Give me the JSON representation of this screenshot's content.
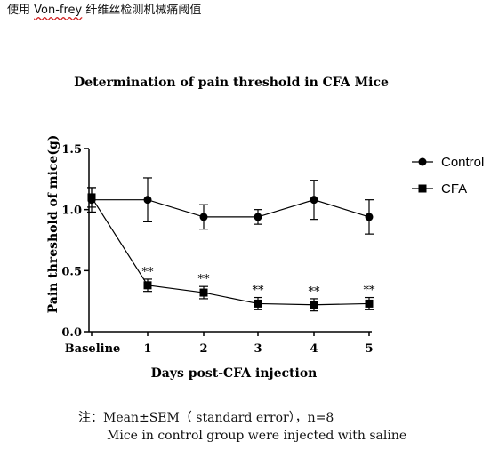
{
  "doc": {
    "heading_prefix": "使用 ",
    "heading_term": "Von-frey",
    "heading_suffix": " 纤维丝检测机械痛阈值"
  },
  "chart_data": {
    "type": "line",
    "title": "Determination of pain threshold in CFA Mice",
    "xlabel": "Days post-CFA injection",
    "ylabel": "Pain threshold of mice(g)",
    "categories": [
      "Baseline",
      "1",
      "2",
      "3",
      "4",
      "5"
    ],
    "yticks": [
      "0.0",
      "0.5",
      "1.0",
      "1.5"
    ],
    "ylim": [
      0,
      1.5
    ],
    "grid": false,
    "legend_position": "right",
    "series": [
      {
        "name": "Control",
        "marker": "circle",
        "values": [
          1.08,
          1.08,
          0.94,
          0.94,
          1.08,
          0.94
        ],
        "errors": [
          0.1,
          0.18,
          0.1,
          0.06,
          0.16,
          0.14
        ]
      },
      {
        "name": "CFA",
        "marker": "square",
        "values": [
          1.1,
          0.38,
          0.32,
          0.23,
          0.22,
          0.23
        ],
        "errors": [
          0.08,
          0.05,
          0.05,
          0.05,
          0.05,
          0.05
        ]
      }
    ],
    "annotations": [
      {
        "category": "1",
        "text": "**"
      },
      {
        "category": "2",
        "text": "**"
      },
      {
        "category": "3",
        "text": "**"
      },
      {
        "category": "4",
        "text": "**"
      },
      {
        "category": "5",
        "text": "**"
      }
    ]
  },
  "note": {
    "line1": "注：Mean±SEM（ standard error），n=8",
    "line2": "Mice in control group were injected with saline"
  }
}
